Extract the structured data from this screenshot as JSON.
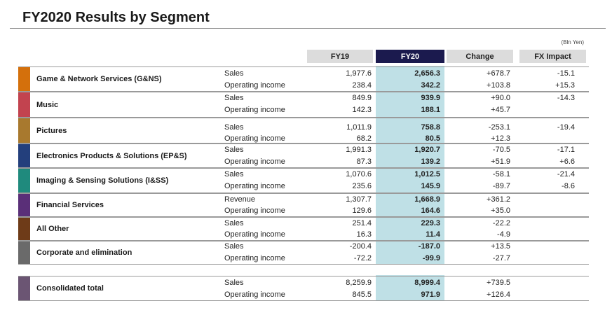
{
  "title": "FY2020 Results by Segment",
  "unit": "(Bln Yen)",
  "columns": {
    "fy19": "FY19",
    "fy20": "FY20",
    "change": "Change",
    "fx": "FX Impact"
  },
  "segments": [
    {
      "name": "Game & Network Services (G&NS)",
      "color": "#d4700c",
      "rows": [
        {
          "metric": "Sales",
          "fy19": "1,977.6",
          "fy20": "2,656.3",
          "change": "+678.7",
          "fx": "-15.1"
        },
        {
          "metric": "Operating income",
          "fy19": "238.4",
          "fy20": "342.2",
          "change": "+103.8",
          "fx": "+15.3"
        }
      ]
    },
    {
      "name": "Music",
      "color": "#c2434f",
      "rows": [
        {
          "metric": "Sales",
          "fy19": "849.9",
          "fy20": "939.9",
          "change": "+90.0",
          "fx": "-14.3"
        },
        {
          "metric": "Operating income",
          "fy19": "142.3",
          "fy20": "188.1",
          "change": "+45.7",
          "fx": ""
        }
      ]
    },
    {
      "name": "Pictures",
      "color": "#a8792e",
      "rows": [
        {
          "metric": "Sales",
          "fy19": "1,011.9",
          "fy20": "758.8",
          "change": "-253.1",
          "fx": "-19.4"
        },
        {
          "metric": "Operating income",
          "fy19": "68.2",
          "fy20": "80.5",
          "change": "+12.3",
          "fx": ""
        }
      ]
    },
    {
      "name": "Electronics Products & Solutions (EP&S)",
      "color": "#233f7c",
      "rows": [
        {
          "metric": "Sales",
          "fy19": "1,991.3",
          "fy20": "1,920.7",
          "change": "-70.5",
          "fx": "-17.1"
        },
        {
          "metric": "Operating income",
          "fy19": "87.3",
          "fy20": "139.2",
          "change": "+51.9",
          "fx": "+6.6"
        }
      ]
    },
    {
      "name": "Imaging & Sensing Solutions (I&SS)",
      "color": "#1f8a7d",
      "rows": [
        {
          "metric": "Sales",
          "fy19": "1,070.6",
          "fy20": "1,012.5",
          "change": "-58.1",
          "fx": "-21.4"
        },
        {
          "metric": "Operating income",
          "fy19": "235.6",
          "fy20": "145.9",
          "change": "-89.7",
          "fx": "-8.6"
        }
      ]
    },
    {
      "name": "Financial Services",
      "color": "#5a2f78",
      "rows": [
        {
          "metric": "Revenue",
          "fy19": "1,307.7",
          "fy20": "1,668.9",
          "change": "+361.2",
          "fx": ""
        },
        {
          "metric": "Operating income",
          "fy19": "129.6",
          "fy20": "164.6",
          "change": "+35.0",
          "fx": ""
        }
      ]
    },
    {
      "name": "All Other",
      "color": "#6e3b18",
      "rows": [
        {
          "metric": "Sales",
          "fy19": "251.4",
          "fy20": "229.3",
          "change": "-22.2",
          "fx": ""
        },
        {
          "metric": "Operating income",
          "fy19": "16.3",
          "fy20": "11.4",
          "change": "-4.9",
          "fx": ""
        }
      ]
    },
    {
      "name": "Corporate and elimination",
      "color": "#6a6a6a",
      "rows": [
        {
          "metric": "Sales",
          "fy19": "-200.4",
          "fy20": "-187.0",
          "change": "+13.5",
          "fx": ""
        },
        {
          "metric": "Operating income",
          "fy19": "-72.2",
          "fy20": "-99.9",
          "change": "-27.7",
          "fx": ""
        }
      ]
    }
  ],
  "total": {
    "name": "Consolidated total",
    "color": "#6b5573",
    "rows": [
      {
        "metric": "Sales",
        "fy19": "8,259.9",
        "fy20": "8,999.4",
        "change": "+739.5",
        "fx": ""
      },
      {
        "metric": "Operating income",
        "fy19": "845.5",
        "fy20": "971.9",
        "change": "+126.4",
        "fx": ""
      }
    ]
  }
}
